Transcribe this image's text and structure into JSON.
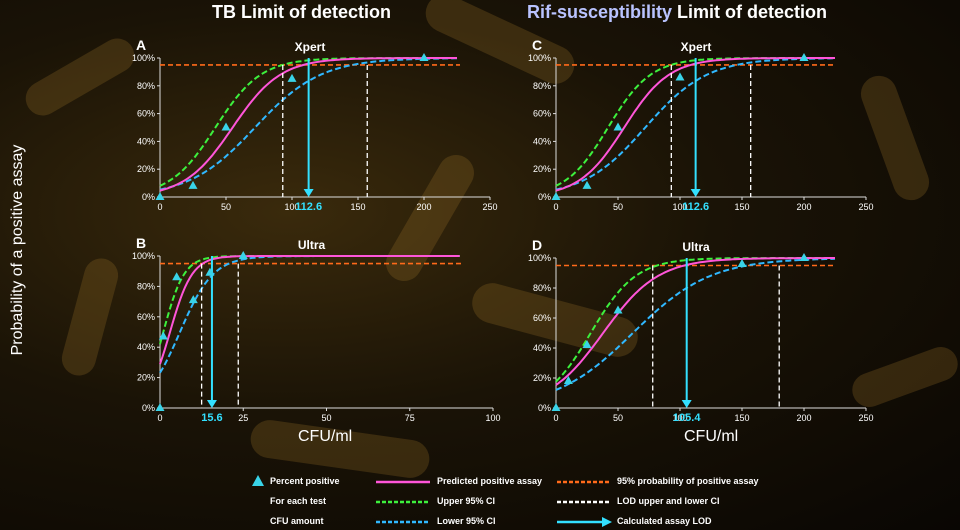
{
  "titles": {
    "left": "TB Limit of detection",
    "right_prefix": "Rif-susceptibility",
    "right_suffix": " Limit of detection"
  },
  "axis": {
    "ylabel": "Probability of a positive assay",
    "xlabel": "CFU/ml"
  },
  "colors": {
    "predicted": "#ff55d9",
    "upper": "#3df03d",
    "lower": "#30b8ff",
    "p95": "#ff6a1a",
    "lod": "#ffffff",
    "arrow": "#33e0ff",
    "points": "#39d3e8"
  },
  "legend": {
    "percent_positive": "Percent positive",
    "for_each_test": "For each test",
    "cfu_amount": "CFU amount",
    "predicted": "Predicted positive assay",
    "upper": "Upper 95% CI",
    "lower": "Lower 95% CI",
    "p95": "95% probability of positive assay",
    "lod_ci": "LOD upper and lower CI",
    "lod": "Calculated assay LOD"
  },
  "chart_data": [
    {
      "panel": "A",
      "title": "Xpert",
      "type": "line",
      "xlim": [
        0,
        250
      ],
      "xticks": [
        0,
        50,
        100,
        150,
        200,
        250
      ],
      "ylim": [
        0,
        100
      ],
      "yticks": [
        0,
        20,
        40,
        60,
        80,
        100
      ],
      "ytick_labels": [
        "0%",
        "20%",
        "40%",
        "60%",
        "80%",
        "100%"
      ],
      "points": [
        {
          "x": 0,
          "y": 0
        },
        {
          "x": 25,
          "y": 8
        },
        {
          "x": 50,
          "y": 50
        },
        {
          "x": 100,
          "y": 85
        },
        {
          "x": 200,
          "y": 100
        }
      ],
      "curves": {
        "predicted": {
          "mid": 55,
          "k": 0.055
        },
        "upper": {
          "mid": 42,
          "k": 0.058
        },
        "lower": {
          "mid": 72,
          "k": 0.04
        }
      },
      "p95": 95,
      "lod": 112.6,
      "lod_label": "112.6",
      "lod_ci": [
        93,
        157
      ]
    },
    {
      "panel": "B",
      "title": "Ultra",
      "type": "line",
      "xlim": [
        0,
        100
      ],
      "xticks": [
        0,
        25,
        50,
        75,
        100
      ],
      "ylim": [
        0,
        100
      ],
      "yticks": [
        0,
        20,
        40,
        60,
        80,
        100
      ],
      "ytick_labels": [
        "0%",
        "20%",
        "40%",
        "60%",
        "80%",
        "100%"
      ],
      "points": [
        {
          "x": 0,
          "y": 0
        },
        {
          "x": 1,
          "y": 47
        },
        {
          "x": 5,
          "y": 86
        },
        {
          "x": 10,
          "y": 71
        },
        {
          "x": 15,
          "y": 89
        },
        {
          "x": 25,
          "y": 100
        }
      ],
      "curves": {
        "predicted": {
          "mid": 3,
          "k": 0.3
        },
        "upper": {
          "mid": 1,
          "k": 0.32
        },
        "lower": {
          "mid": 6,
          "k": 0.2
        }
      },
      "p95": 95,
      "lod": 15.6,
      "lod_label": "15.6",
      "lod_ci": [
        12.5,
        23.5
      ]
    },
    {
      "panel": "C",
      "title": "Xpert",
      "type": "line",
      "xlim": [
        0,
        250
      ],
      "xticks": [
        0,
        50,
        100,
        150,
        200,
        250
      ],
      "ylim": [
        0,
        100
      ],
      "yticks": [
        0,
        20,
        40,
        60,
        80,
        100
      ],
      "ytick_labels": [
        "0%",
        "20%",
        "40%",
        "60%",
        "80%",
        "100%"
      ],
      "points": [
        {
          "x": 0,
          "y": 0
        },
        {
          "x": 25,
          "y": 8
        },
        {
          "x": 50,
          "y": 50
        },
        {
          "x": 100,
          "y": 86
        },
        {
          "x": 200,
          "y": 100
        }
      ],
      "curves": {
        "predicted": {
          "mid": 55,
          "k": 0.055
        },
        "upper": {
          "mid": 42,
          "k": 0.058
        },
        "lower": {
          "mid": 72,
          "k": 0.04
        }
      },
      "p95": 95,
      "lod": 112.6,
      "lod_label": "112.6",
      "lod_ci": [
        93,
        157
      ]
    },
    {
      "panel": "D",
      "title": "Ultra",
      "type": "line",
      "xlim": [
        0,
        250
      ],
      "xticks": [
        0,
        50,
        100,
        150,
        200,
        250
      ],
      "ylim": [
        0,
        100
      ],
      "yticks": [
        0,
        20,
        40,
        60,
        80,
        100
      ],
      "ytick_labels": [
        "0%",
        "20%",
        "40%",
        "60%",
        "80%",
        "100%"
      ],
      "points": [
        {
          "x": 0,
          "y": 0
        },
        {
          "x": 10,
          "y": 18
        },
        {
          "x": 25,
          "y": 42
        },
        {
          "x": 50,
          "y": 65
        },
        {
          "x": 150,
          "y": 96
        },
        {
          "x": 200,
          "y": 100
        }
      ],
      "curves": {
        "predicted": {
          "mid": 38,
          "k": 0.045
        },
        "upper": {
          "mid": 28,
          "k": 0.055
        },
        "lower": {
          "mid": 62,
          "k": 0.032
        }
      },
      "p95": 95,
      "lod": 105.4,
      "lod_label": "105.4",
      "lod_ci": [
        78,
        180
      ]
    }
  ]
}
